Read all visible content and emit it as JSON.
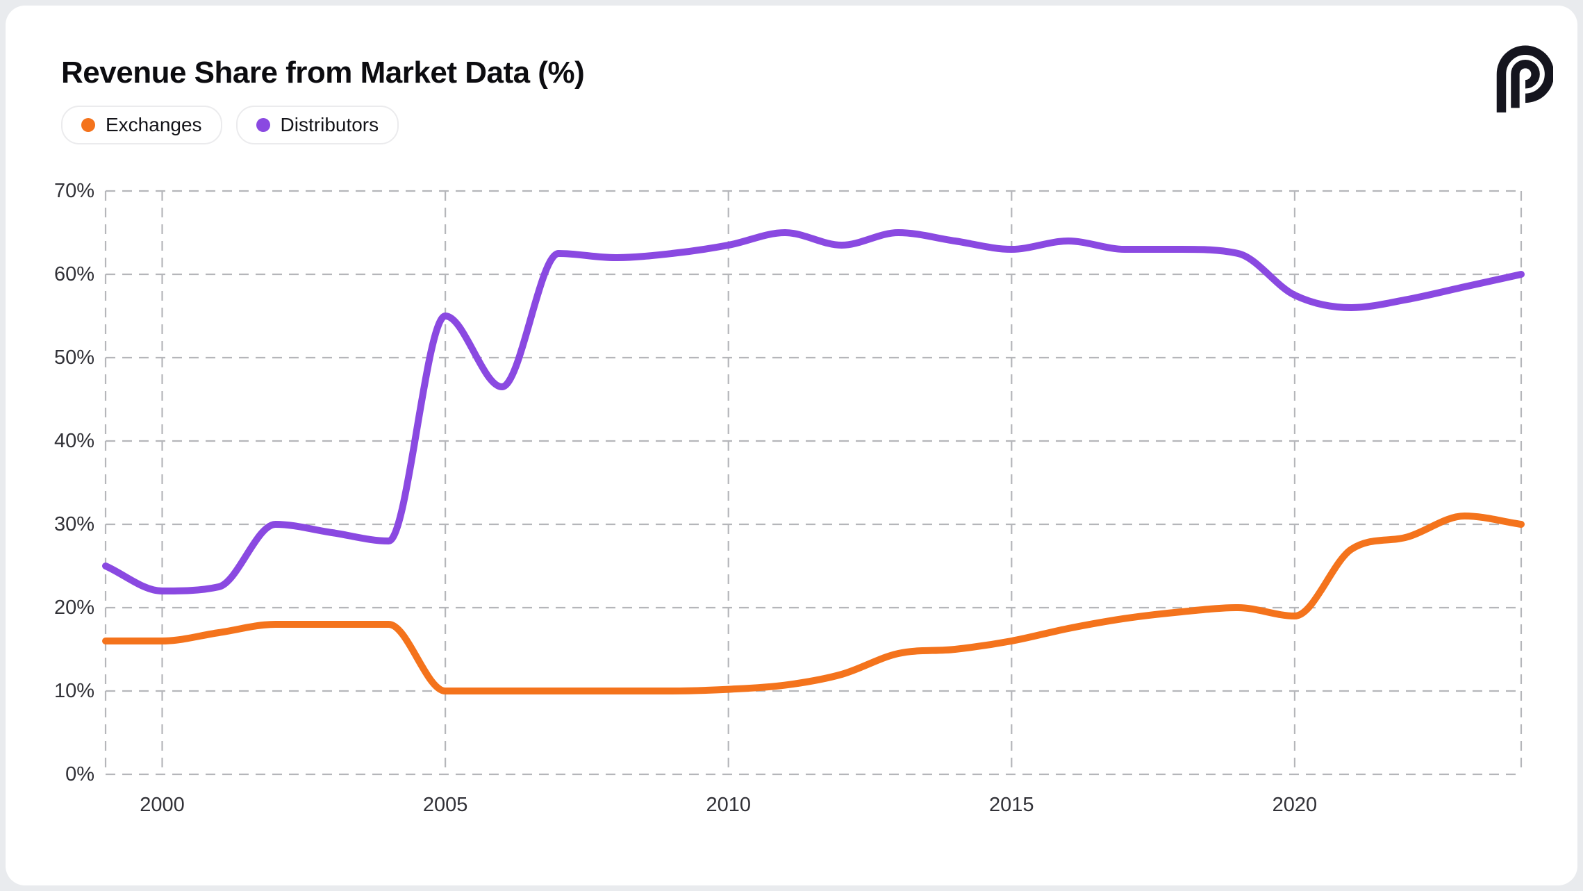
{
  "header": {
    "title": "Revenue Share from Market Data (%)",
    "logo": "p-mark"
  },
  "legend": {
    "items": [
      {
        "label": "Exchanges",
        "color": "#F4731C"
      },
      {
        "label": "Distributors",
        "color": "#8A49E1"
      }
    ]
  },
  "chart_data": {
    "type": "line",
    "title": "Revenue Share from Market Data (%)",
    "xlabel": "",
    "ylabel": "",
    "x": [
      1999,
      2000,
      2001,
      2002,
      2003,
      2004,
      2005,
      2006,
      2007,
      2008,
      2009,
      2010,
      2011,
      2012,
      2013,
      2014,
      2015,
      2016,
      2017,
      2018,
      2019,
      2020,
      2021,
      2022,
      2023,
      2024
    ],
    "series": [
      {
        "name": "Exchanges",
        "color": "#F4731C",
        "values": [
          16,
          16,
          17,
          18,
          18,
          18,
          10,
          10,
          10,
          10,
          10,
          10.2,
          10.7,
          12,
          14.5,
          15,
          16,
          17.5,
          18.7,
          19.5,
          20,
          19,
          27,
          28.5,
          31,
          30
        ]
      },
      {
        "name": "Distributors",
        "color": "#8A49E1",
        "values": [
          25,
          22,
          22.5,
          30,
          29,
          28,
          55,
          46.5,
          62.5,
          62,
          62.5,
          63.5,
          65,
          63.5,
          65,
          64,
          63,
          64,
          63,
          63,
          62.5,
          57.5,
          56,
          57,
          58.5,
          60
        ]
      }
    ],
    "xlim": [
      1999,
      2024
    ],
    "ylim": [
      0,
      70
    ],
    "ytick_values": [
      0,
      10,
      20,
      30,
      40,
      50,
      60,
      70
    ],
    "ytick_labels": [
      "0%",
      "10%",
      "20%",
      "30%",
      "40%",
      "50%",
      "60%",
      "70%"
    ],
    "xtick_values": [
      2000,
      2005,
      2010,
      2015,
      2020
    ],
    "xtick_labels": [
      "2000",
      "2005",
      "2010",
      "2015",
      "2020"
    ],
    "vgrid_years": [
      1999,
      2000,
      2005,
      2010,
      2015,
      2020,
      2024
    ],
    "grid": "dashed, horizontal and vertical",
    "legend_position": "top-left"
  },
  "colors": {
    "background": "#e9ebee",
    "card": "#ffffff",
    "gridline": "#b5b6ba",
    "tick_text": "#313137",
    "title_text": "#0c0c10",
    "logo": "#15151e",
    "exchanges": "#F4731C",
    "distributors": "#8A49E1"
  }
}
